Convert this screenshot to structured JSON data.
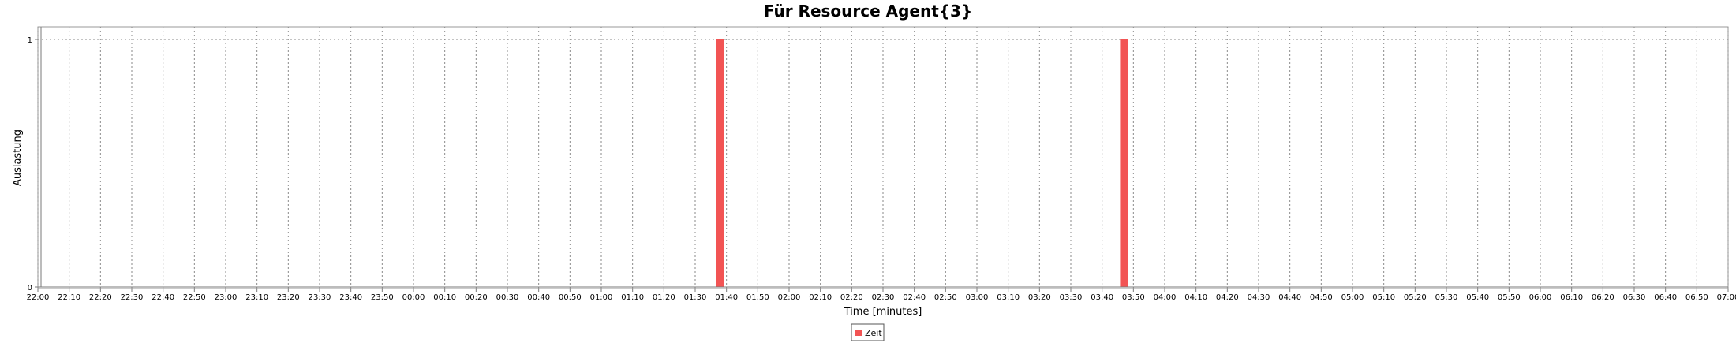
{
  "chart_data": {
    "type": "bar",
    "title": "Für Resource Agent{3}",
    "xlabel": "Time [minutes]",
    "ylabel": "Auslastung",
    "x_ticks": [
      "22:00",
      "22:10",
      "22:20",
      "22:30",
      "22:40",
      "22:50",
      "23:00",
      "23:10",
      "23:20",
      "23:30",
      "23:40",
      "23:50",
      "00:00",
      "00:10",
      "00:20",
      "00:30",
      "00:40",
      "00:50",
      "01:00",
      "01:10",
      "01:20",
      "01:30",
      "01:40",
      "01:50",
      "02:00",
      "02:10",
      "02:20",
      "02:30",
      "02:40",
      "02:50",
      "03:00",
      "03:10",
      "03:20",
      "03:30",
      "03:40",
      "03:50",
      "04:00",
      "04:10",
      "04:20",
      "04:30",
      "04:40",
      "04:50",
      "05:00",
      "05:10",
      "05:20",
      "05:30",
      "05:40",
      "05:50",
      "06:00",
      "06:10",
      "06:20",
      "06:30",
      "06:40",
      "06:50",
      "07:00"
    ],
    "y_ticks": [
      "0",
      "1"
    ],
    "ylim": [
      0,
      1
    ],
    "xlim": [
      "22:00",
      "07:00"
    ],
    "grid": true,
    "legend_position": "bottom-center",
    "series": [
      {
        "name": "Zeit",
        "color": "#f25454",
        "points": [
          {
            "x": "01:38",
            "y": 1
          },
          {
            "x": "03:47",
            "y": 1
          }
        ]
      }
    ]
  }
}
